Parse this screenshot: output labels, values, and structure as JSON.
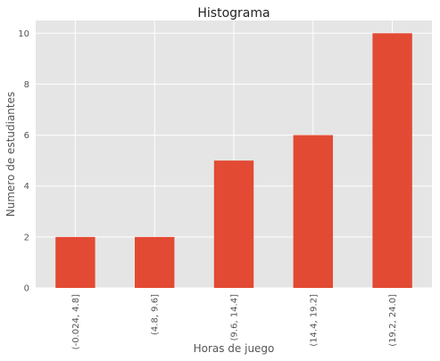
{
  "chart_data": {
    "type": "bar",
    "title": "Histograma",
    "xlabel": "Horas de juego",
    "ylabel": "Numero de estudiantes",
    "categories": [
      "(-0.024, 4.8]",
      "(4.8, 9.6]",
      "(9.6, 14.4]",
      "(14.4, 19.2]",
      "(19.2, 24.0]"
    ],
    "values": [
      2,
      2,
      5,
      6,
      10
    ],
    "ylim": [
      0,
      10.5
    ],
    "yticks": [
      0,
      2,
      4,
      6,
      8,
      10
    ],
    "grid": true,
    "colors": {
      "bar": "#E24A33",
      "background": "#E5E5E5",
      "grid": "#FFFFFF"
    }
  }
}
